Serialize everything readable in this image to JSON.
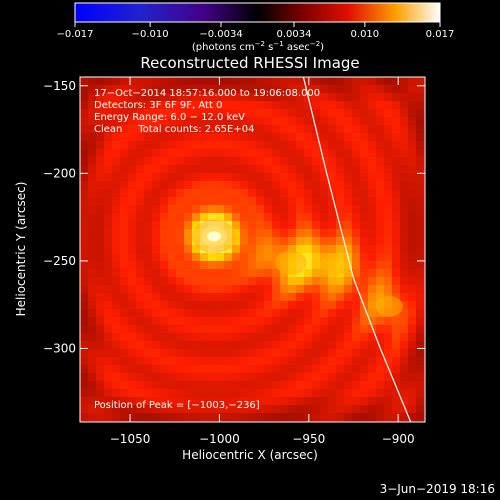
{
  "colorbar": {
    "ticks": [
      "−0.017",
      "−0.010",
      "−0.0034",
      "0.0034",
      "0.010",
      "0.017"
    ],
    "tick_values": [
      -0.017,
      -0.01,
      -0.0034,
      0.0034,
      0.01,
      0.017
    ],
    "range": [
      -0.017,
      0.017
    ],
    "units_main": "(photons cm",
    "units_sup1": "−2",
    "units_mid": " s",
    "units_sup2": "−1",
    "units_end": " asec",
    "units_sup3": "−2",
    "units_close": ")"
  },
  "chart_data": {
    "type": "heatmap",
    "title": "Reconstructed RHESSI Image",
    "xlabel": "Heliocentric X (arcsec)",
    "ylabel": "Heliocentric Y (arcsec)",
    "xlim": [
      -1078,
      -885
    ],
    "ylim": [
      -342,
      -145
    ],
    "x_ticks": [
      -1050,
      -1000,
      -950,
      -900
    ],
    "x_tick_labels": [
      "−1050",
      "−1000",
      "−950",
      "−900"
    ],
    "y_ticks": [
      -150,
      -200,
      -250,
      -300
    ],
    "y_tick_labels": [
      "−150",
      "−200",
      "−250",
      "−300"
    ],
    "colormap": "hot",
    "info_lines": [
      "17−Oct−2014 18:57:16.000 to 19:06:08.000",
      "Detectors: 3F 6F 9F, Att 0",
      "Energy Range: 6.0 − 12.0 keV",
      "Clean     Total counts: 2.65E+04"
    ],
    "peak_label": "Position of Peak = [−1003,−236]",
    "sources": [
      {
        "x": -1003,
        "y": -236,
        "relative_intensity": 1.0
      },
      {
        "x": -960,
        "y": -251,
        "relative_intensity": 0.55
      },
      {
        "x": -935,
        "y": -252,
        "relative_intensity": 0.5
      },
      {
        "x": -905,
        "y": -276,
        "relative_intensity": 0.4
      }
    ],
    "limb_curve": [
      {
        "x": -953,
        "y": -145
      },
      {
        "x": -940,
        "y": -200
      },
      {
        "x": -925,
        "y": -260
      },
      {
        "x": -910,
        "y": -300
      },
      {
        "x": -893,
        "y": -342
      }
    ]
  },
  "timestamp": "3−Jun−2019 18:16"
}
